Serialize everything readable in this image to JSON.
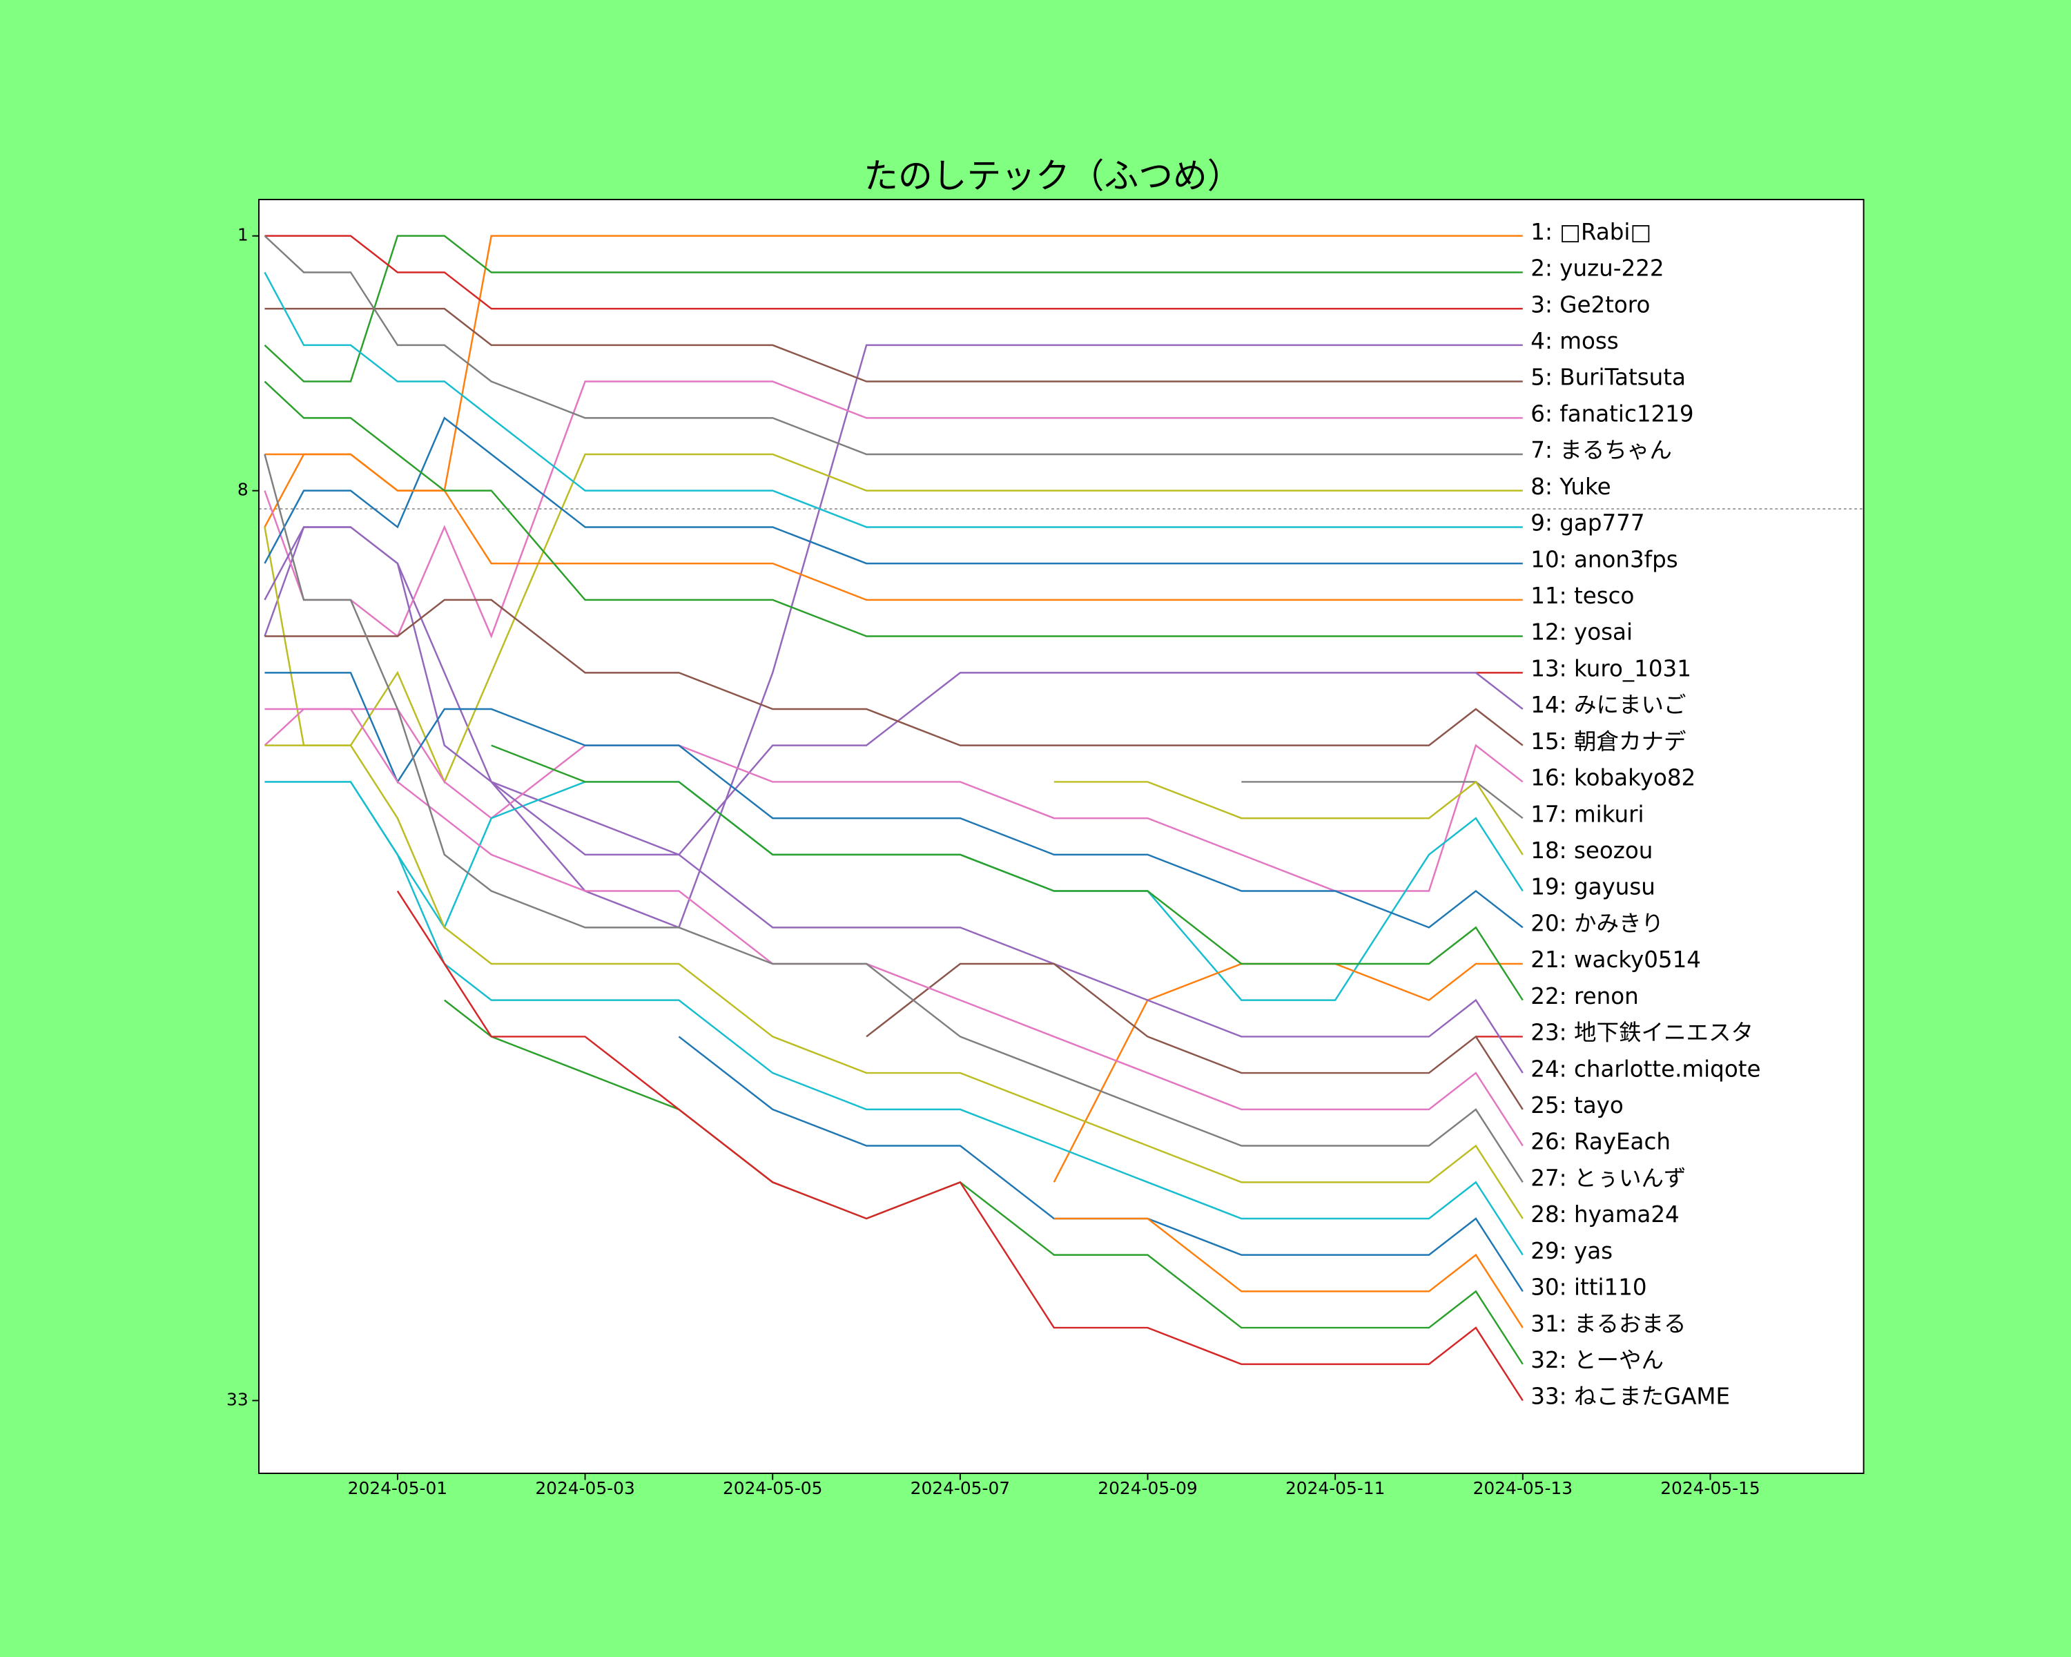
{
  "chart_data": {
    "type": "line",
    "title": "たのしテック（ふつめ）",
    "x": [
      "2024-04-29T14:00",
      "2024-04-30T00:00",
      "2024-04-30T12:00",
      "2024-05-01T00:00",
      "2024-05-01T12:00",
      "2024-05-02T00:00",
      "2024-05-03T00:00",
      "2024-05-04T00:00",
      "2024-05-05T00:00",
      "2024-05-06T00:00",
      "2024-05-07T00:00",
      "2024-05-08T00:00",
      "2024-05-09T00:00",
      "2024-05-10T00:00",
      "2024-05-11T00:00",
      "2024-05-12T00:00",
      "2024-05-12T12:00",
      "2024-05-13T00:00"
    ],
    "xlim": [
      "2024-04-29T12:30",
      "2024-05-16T15:15"
    ],
    "xticks": [
      "2024-05-01",
      "2024-05-03",
      "2024-05-05",
      "2024-05-07",
      "2024-05-09",
      "2024-05-11",
      "2024-05-13",
      "2024-05-15"
    ],
    "ylim": [
      35,
      0
    ],
    "yticks": [
      1,
      8,
      33
    ],
    "hline": 8.5,
    "grid": false,
    "series": [
      {
        "name": "1: □Rabi□",
        "color": "#ff7f0e",
        "values": [
          9,
          7,
          7,
          8,
          8,
          1,
          1,
          1,
          1,
          1,
          1,
          1,
          1,
          1,
          1,
          1,
          1,
          1
        ]
      },
      {
        "name": "2: yuzu-222",
        "color": "#2ca02c",
        "values": [
          4,
          5,
          5,
          1,
          1,
          2,
          2,
          2,
          2,
          2,
          2,
          2,
          2,
          2,
          2,
          2,
          2,
          2
        ]
      },
      {
        "name": "3: Ge2toro",
        "color": "#d62728",
        "values": [
          1,
          1,
          1,
          2,
          2,
          3,
          3,
          3,
          3,
          3,
          3,
          3,
          3,
          3,
          3,
          3,
          3,
          3
        ]
      },
      {
        "name": "4: moss",
        "color": "#9467bd",
        "values": [
          12,
          9,
          9,
          10,
          13,
          16,
          19,
          20,
          13,
          4,
          4,
          4,
          4,
          4,
          4,
          4,
          4,
          4
        ]
      },
      {
        "name": "5: BuriTatsuta",
        "color": "#8c564b",
        "values": [
          3,
          3,
          3,
          3,
          3,
          4,
          4,
          4,
          4,
          5,
          5,
          5,
          5,
          5,
          5,
          5,
          5,
          5
        ]
      },
      {
        "name": "6: fanatic1219",
        "color": "#e377c2",
        "values": [
          8,
          11,
          11,
          12,
          9,
          12,
          5,
          5,
          5,
          6,
          6,
          6,
          6,
          6,
          6,
          6,
          6,
          6
        ]
      },
      {
        "name": "7: まるちゃん",
        "color": "#7f7f7f",
        "values": [
          1,
          2,
          2,
          4,
          4,
          5,
          6,
          6,
          6,
          7,
          7,
          7,
          7,
          7,
          7,
          7,
          7,
          7
        ]
      },
      {
        "name": "8: Yuke",
        "color": "#bcbd22",
        "values": [
          9,
          15,
          15,
          13,
          16,
          13,
          7,
          7,
          7,
          8,
          8,
          8,
          8,
          8,
          8,
          8,
          8,
          8
        ]
      },
      {
        "name": "9: gap777",
        "color": "#17becf",
        "values": [
          2,
          4,
          4,
          5,
          5,
          6,
          8,
          8,
          8,
          9,
          9,
          9,
          9,
          9,
          9,
          9,
          9,
          9
        ]
      },
      {
        "name": "10: anon3fps",
        "color": "#1f77b4",
        "values": [
          10,
          8,
          8,
          9,
          6,
          7,
          9,
          9,
          9,
          10,
          10,
          10,
          10,
          10,
          10,
          10,
          10,
          10
        ]
      },
      {
        "name": "11: tesco",
        "color": "#ff7f0e",
        "values": [
          7,
          7,
          7,
          8,
          8,
          10,
          10,
          10,
          10,
          11,
          11,
          11,
          11,
          11,
          11,
          11,
          11,
          11
        ]
      },
      {
        "name": "12: yosai",
        "color": "#2ca02c",
        "values": [
          5,
          6,
          6,
          7,
          8,
          8,
          11,
          11,
          11,
          12,
          12,
          12,
          12,
          12,
          12,
          12,
          12,
          12
        ]
      },
      {
        "name": "13: kuro_1031",
        "color": "#d62728",
        "values": [
          null,
          null,
          null,
          null,
          null,
          null,
          null,
          null,
          null,
          null,
          null,
          null,
          null,
          null,
          null,
          null,
          13,
          13
        ]
      },
      {
        "name": "14: みにまいご",
        "color": "#9467bd",
        "values": [
          11,
          9,
          9,
          10,
          15,
          16,
          17,
          18,
          15,
          15,
          13,
          13,
          13,
          13,
          13,
          13,
          13,
          14
        ]
      },
      {
        "name": "15: 朝倉カナデ",
        "color": "#8c564b",
        "values": [
          12,
          12,
          12,
          12,
          11,
          11,
          13,
          13,
          14,
          14,
          15,
          15,
          15,
          15,
          15,
          15,
          14,
          15
        ]
      },
      {
        "name": "16: kobakyo82",
        "color": "#e377c2",
        "values": [
          14,
          14,
          14,
          14,
          16,
          17,
          15,
          15,
          16,
          16,
          16,
          17,
          17,
          18,
          19,
          19,
          15,
          16
        ]
      },
      {
        "name": "17: mikuri",
        "color": "#7f7f7f",
        "values": [
          null,
          null,
          null,
          null,
          null,
          null,
          null,
          null,
          null,
          null,
          null,
          null,
          null,
          16,
          16,
          16,
          16,
          17
        ]
      },
      {
        "name": "18: seozou",
        "color": "#bcbd22",
        "values": [
          null,
          null,
          null,
          null,
          null,
          null,
          null,
          null,
          null,
          null,
          null,
          16,
          16,
          17,
          17,
          17,
          16,
          18
        ]
      },
      {
        "name": "19: gayusu",
        "color": "#17becf",
        "values": [
          16,
          16,
          16,
          18,
          20,
          17,
          16,
          16,
          18,
          18,
          18,
          19,
          19,
          22,
          22,
          18,
          17,
          19
        ]
      },
      {
        "name": "20: かみきり",
        "color": "#1f77b4",
        "values": [
          13,
          13,
          13,
          16,
          14,
          14,
          15,
          15,
          17,
          17,
          17,
          18,
          18,
          19,
          19,
          20,
          19,
          20
        ]
      },
      {
        "name": "21: wacky0514",
        "color": "#ff7f0e",
        "values": [
          null,
          null,
          null,
          null,
          null,
          null,
          null,
          null,
          null,
          null,
          null,
          27,
          22,
          21,
          21,
          22,
          21,
          21
        ]
      },
      {
        "name": "22: renon",
        "color": "#2ca02c",
        "values": [
          null,
          null,
          null,
          null,
          null,
          15,
          16,
          16,
          18,
          18,
          18,
          19,
          19,
          21,
          21,
          21,
          20,
          22
        ]
      },
      {
        "name": "23: 地下鉄イニエスタ",
        "color": "#d62728",
        "values": [
          null,
          null,
          null,
          null,
          null,
          null,
          null,
          null,
          null,
          null,
          null,
          null,
          null,
          null,
          null,
          null,
          23,
          23
        ]
      },
      {
        "name": "24: charlotte.miqote",
        "color": "#9467bd",
        "values": [
          null,
          null,
          null,
          null,
          null,
          16,
          18,
          18,
          20,
          20,
          20,
          21,
          22,
          23,
          23,
          23,
          22,
          24
        ]
      },
      {
        "name": "25: tayo",
        "color": "#8c564b",
        "values": [
          null,
          null,
          null,
          null,
          null,
          null,
          null,
          null,
          null,
          23,
          21,
          21,
          23,
          24,
          24,
          24,
          23,
          25
        ]
      },
      {
        "name": "26: RayEach",
        "color": "#e377c2",
        "values": [
          15,
          14,
          14,
          16,
          17,
          18,
          19,
          19,
          21,
          21,
          22,
          23,
          24,
          25,
          25,
          25,
          24,
          26
        ]
      },
      {
        "name": "27: とぅいんず",
        "color": "#7f7f7f",
        "values": [
          7,
          11,
          11,
          14,
          18,
          19,
          20,
          20,
          21,
          21,
          23,
          24,
          25,
          26,
          26,
          26,
          25,
          27
        ]
      },
      {
        "name": "28: hyama24",
        "color": "#bcbd22",
        "values": [
          15,
          15,
          15,
          17,
          20,
          21,
          21,
          21,
          23,
          24,
          24,
          25,
          26,
          27,
          27,
          27,
          26,
          28
        ]
      },
      {
        "name": "29: yas",
        "color": "#17becf",
        "values": [
          16,
          16,
          16,
          18,
          21,
          22,
          22,
          22,
          24,
          25,
          25,
          26,
          27,
          28,
          28,
          28,
          27,
          29
        ]
      },
      {
        "name": "30: itti110",
        "color": "#1f77b4",
        "values": [
          null,
          null,
          null,
          null,
          null,
          null,
          null,
          23,
          25,
          26,
          26,
          28,
          28,
          29,
          29,
          29,
          28,
          30
        ]
      },
      {
        "name": "31: まるおまる",
        "color": "#ff7f0e",
        "values": [
          null,
          null,
          null,
          null,
          null,
          null,
          null,
          null,
          null,
          null,
          null,
          28,
          28,
          30,
          30,
          30,
          29,
          31
        ]
      },
      {
        "name": "32: とーやん",
        "color": "#2ca02c",
        "values": [
          null,
          null,
          null,
          null,
          22,
          23,
          24,
          25,
          27,
          28,
          27,
          29,
          29,
          31,
          31,
          31,
          30,
          32
        ]
      },
      {
        "name": "33: ねこまたGAME",
        "color": "#d62728",
        "values": [
          null,
          null,
          null,
          19,
          21,
          23,
          23,
          25,
          27,
          28,
          27,
          31,
          31,
          32,
          32,
          32,
          31,
          33
        ]
      }
    ]
  }
}
